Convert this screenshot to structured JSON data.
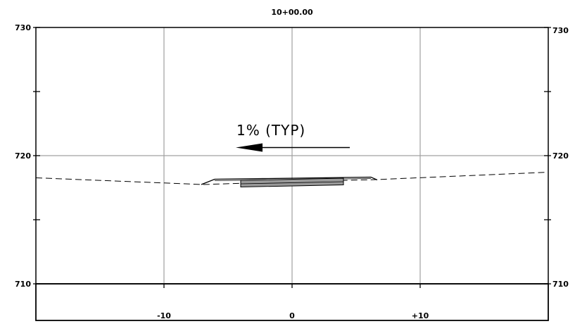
{
  "section": {
    "station": "10+00.00",
    "elevations": [
      "730",
      "720",
      "710"
    ],
    "offsets": [
      "-10",
      "0",
      "+10"
    ],
    "slope_note": "1% (TYP)"
  },
  "colors": {
    "grid": "#a0a0a0",
    "frame": "#000000",
    "pavement_fill": "#999999"
  }
}
